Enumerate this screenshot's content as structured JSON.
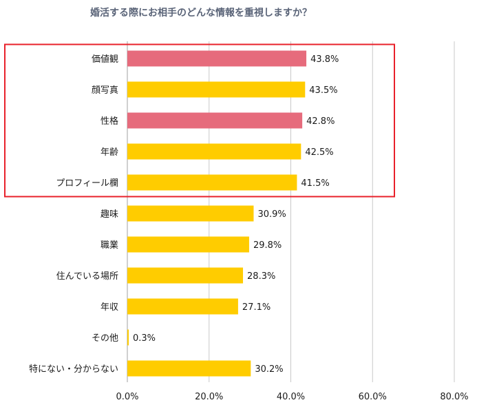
{
  "chart_data": {
    "type": "bar",
    "orientation": "horizontal",
    "title": "婚活する際にお相手のどんな情報を重視しますか？",
    "xlabel": "",
    "ylabel": "",
    "categories": [
      "価値観",
      "顔写真",
      "性格",
      "年齢",
      "プロフィール欄",
      "趣味",
      "職業",
      "住んでいる場所",
      "年収",
      "その他",
      "特にない・分からない"
    ],
    "values": [
      43.8,
      43.5,
      42.8,
      42.5,
      41.5,
      30.9,
      29.8,
      28.3,
      27.1,
      0.3,
      30.2
    ],
    "value_labels": [
      "43.8%",
      "43.5%",
      "42.8%",
      "42.5%",
      "41.5%",
      "30.9%",
      "29.8%",
      "28.3%",
      "27.1%",
      "0.3%",
      "30.2%"
    ],
    "bar_colors": [
      "#e66b7c",
      "#ffcc00",
      "#e66b7c",
      "#ffcc00",
      "#ffcc00",
      "#ffcc00",
      "#ffcc00",
      "#ffcc00",
      "#ffcc00",
      "#ffcc00",
      "#ffcc00"
    ],
    "xlim": [
      0,
      80
    ],
    "xticks": [
      0,
      20,
      40,
      60,
      80
    ],
    "xtick_labels": [
      "0.0%",
      "20.0%",
      "40.0%",
      "60.0%",
      "80.0%"
    ],
    "grid": true,
    "legend": "none",
    "highlight_box": {
      "from_category": "価値観",
      "to_category": "プロフィール欄",
      "color": "#e8202a"
    }
  },
  "colors": {
    "title": "#5a6478",
    "text": "#1a1a1a",
    "gridline": "#c8c8c8",
    "axis": "#a0a0a0"
  }
}
